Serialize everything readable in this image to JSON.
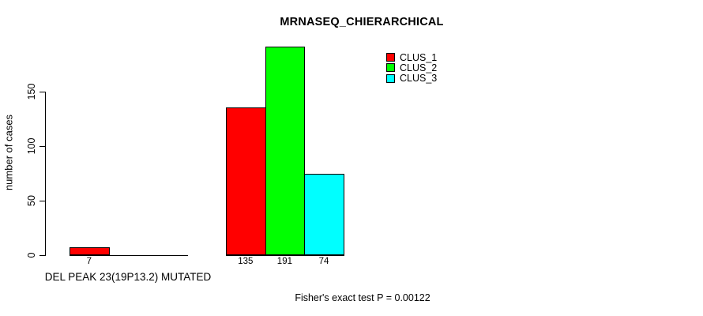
{
  "chart_data": {
    "type": "bar",
    "title": "MRNASEQ_CHIERARCHICAL",
    "ylabel": "number of cases",
    "xlabel": "DEL PEAK 23(19P13.2) MUTATED",
    "footnote": "Fisher's exact test P = 0.00122",
    "yticks": [
      0,
      50,
      100,
      150
    ],
    "ylim": [
      0,
      191
    ],
    "grid": false,
    "legend_position": "top-right",
    "background_color": "#ffffff",
    "axis_color": "#000000",
    "series": [
      {
        "name": "CLUS_1",
        "color": "#ff0000",
        "values": [
          7,
          135
        ]
      },
      {
        "name": "CLUS_2",
        "color": "#00ff00",
        "values": [
          0,
          191
        ]
      },
      {
        "name": "CLUS_3",
        "color": "#00ffff",
        "values": [
          0,
          74
        ]
      }
    ],
    "groups": [
      {
        "label": "DEL PEAK 23(19P13.2) MUTATED",
        "bar_labels": [
          "7",
          "",
          ""
        ]
      },
      {
        "label": "",
        "bar_labels": [
          "135",
          "191",
          "74"
        ]
      }
    ]
  }
}
